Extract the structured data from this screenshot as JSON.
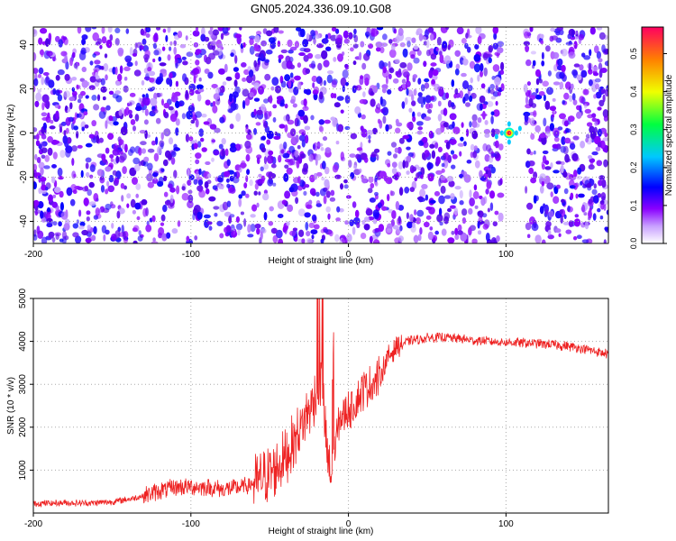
{
  "title": "GN05.2024.336.09.10.G08",
  "chart_data": [
    {
      "type": "heatmap",
      "xlabel": "Height of straight line (km)",
      "ylabel": "Frequency (Hz)",
      "xlim": [
        -200,
        165
      ],
      "ylim": [
        -50,
        48
      ],
      "xticks": [
        -200,
        -100,
        0,
        100
      ],
      "yticks": [
        -40,
        -20,
        0,
        20,
        40
      ],
      "colorbar": {
        "label": "Normalized spectral amplitude",
        "range": [
          0.0,
          0.57
        ],
        "ticks": [
          "0.0",
          "0.1",
          "0.2",
          "0.3",
          "0.4",
          "0.5"
        ],
        "colors": [
          "#ffffff",
          "#8a00ff",
          "#0000ff",
          "#00c8ff",
          "#00ff40",
          "#f0ff00",
          "#ff8000",
          "#ff0060"
        ]
      },
      "peak": {
        "x": 102,
        "y": 0,
        "value": 0.57
      },
      "gaps_km": [
        [
          98,
          112
        ]
      ],
      "grid": true
    },
    {
      "type": "line",
      "xlabel": "Height of straight line (km)",
      "ylabel": "SNR (10 * v/v)",
      "xlim": [
        -200,
        165
      ],
      "ylim": [
        0,
        5000
      ],
      "xticks": [
        -200,
        -100,
        0,
        100
      ],
      "yticks": [
        1000,
        2000,
        3000,
        4000,
        5000
      ],
      "series_color": "#ee2222",
      "grid": true,
      "series": [
        {
          "x": [
            -200,
            -190,
            -180,
            -170,
            -160,
            -150,
            -140,
            -130,
            -120,
            -110,
            -100,
            -90,
            -80,
            -70,
            -60,
            -50,
            -40,
            -30,
            -25,
            -20,
            -17,
            -15,
            -13,
            -11,
            -9,
            -5,
            0,
            5,
            10,
            15,
            20,
            25,
            30,
            40,
            50,
            60,
            70,
            80,
            90,
            100,
            110,
            120,
            130,
            140,
            150,
            160,
            165
          ],
          "values": [
            220,
            230,
            240,
            230,
            240,
            260,
            320,
            400,
            520,
            600,
            620,
            600,
            560,
            580,
            700,
            900,
            1300,
            2000,
            2400,
            2800,
            3200,
            2000,
            1200,
            700,
            1500,
            2200,
            2400,
            2600,
            2900,
            3000,
            3200,
            3600,
            3900,
            4020,
            4080,
            4100,
            4060,
            4020,
            4000,
            3980,
            3970,
            3950,
            3920,
            3880,
            3820,
            3740,
            3700
          ]
        }
      ]
    }
  ]
}
